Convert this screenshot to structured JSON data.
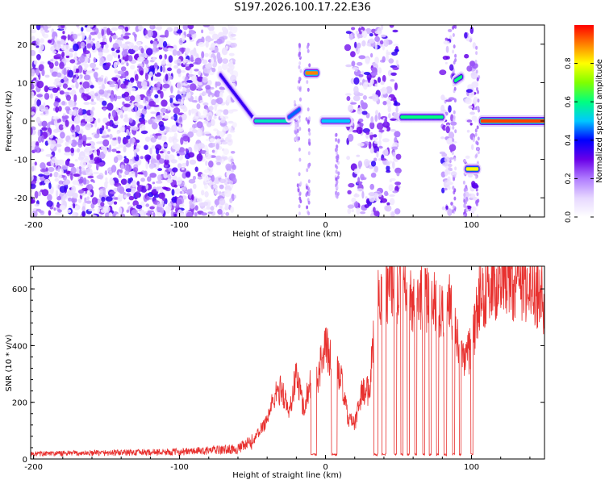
{
  "title": "S197.2026.100.17.22.E36",
  "chart_data": [
    {
      "type": "heatmap",
      "name": "spectrogram",
      "xlabel": "Height of straight line (km)",
      "ylabel": "Frequency (Hz)",
      "xlim": [
        -202,
        150
      ],
      "ylim": [
        -25,
        25
      ],
      "xticks": [
        -200,
        -100,
        0,
        100
      ],
      "yticks": [
        -20,
        -10,
        0,
        10,
        20
      ],
      "colorbar": {
        "label": "Normalized spectral amplitude",
        "range": [
          0,
          1
        ],
        "ticks": [
          0.0,
          0.2,
          0.4,
          0.6,
          0.8
        ],
        "tick_labels": [
          "0.0",
          "0.2",
          "0.4",
          "0.6",
          "0.8"
        ],
        "colormap": [
          "#ffffff",
          "#e6d7ff",
          "#b07cff",
          "#6a00e8",
          "#0000ff",
          "#00c8ff",
          "#00ff80",
          "#80ff00",
          "#ffff00",
          "#ff8000",
          "#ff0000"
        ]
      },
      "noise_regions_km": [
        [
          -202,
          -62
        ],
        [
          15,
          50
        ],
        [
          80,
          88
        ],
        [
          96,
          103
        ]
      ],
      "features": [
        {
          "x_start": -72,
          "x_end": -48,
          "freq_start": 12,
          "freq_end": 0,
          "amp": 0.35
        },
        {
          "x_start": -48,
          "x_end": -25,
          "freq_start": 0,
          "freq_end": 0,
          "amp": 0.55
        },
        {
          "x_start": -25,
          "x_end": -18,
          "freq_start": 1,
          "freq_end": 3,
          "amp": 0.45
        },
        {
          "x_start": -13,
          "x_end": -6,
          "freq_start": 12.5,
          "freq_end": 12.5,
          "amp": 0.9
        },
        {
          "x_start": -2,
          "x_end": 16,
          "freq_start": 0,
          "freq_end": 0,
          "amp": 0.5
        },
        {
          "x_start": 52,
          "x_end": 80,
          "freq_start": 1,
          "freq_end": 1,
          "amp": 0.6
        },
        {
          "x_start": 89,
          "x_end": 93,
          "freq_start": 10.5,
          "freq_end": 11.5,
          "amp": 0.6
        },
        {
          "x_start": 97,
          "x_end": 104,
          "freq_start": -12.5,
          "freq_end": -12.5,
          "amp": 0.8
        },
        {
          "x_start": 107,
          "x_end": 150,
          "freq_start": 0,
          "freq_end": 0,
          "amp": 0.95
        }
      ]
    },
    {
      "type": "line",
      "name": "snr",
      "xlabel": "Height of straight line (km)",
      "ylabel": "SNR (10 * v/v)",
      "xlim": [
        -202,
        150
      ],
      "ylim": [
        0,
        680
      ],
      "xticks": [
        -200,
        -100,
        0,
        100
      ],
      "yticks": [
        0,
        200,
        400,
        600
      ],
      "color": "#e8312f",
      "profile_km": [
        -202,
        -100,
        -60,
        -50,
        -40,
        -35,
        -30,
        -25,
        -20,
        -15,
        -10,
        -5,
        0,
        5,
        10,
        15,
        20,
        25,
        30,
        35,
        40,
        45,
        50,
        55,
        60,
        65,
        70,
        75,
        80,
        85,
        90,
        95,
        100,
        105,
        110,
        120,
        130,
        140,
        150
      ],
      "profile_snr": [
        18,
        25,
        35,
        60,
        140,
        220,
        250,
        160,
        300,
        180,
        280,
        300,
        400,
        330,
        300,
        150,
        120,
        240,
        240,
        590,
        600,
        620,
        600,
        600,
        570,
        580,
        550,
        560,
        520,
        540,
        440,
        330,
        400,
        560,
        600,
        630,
        620,
        610,
        560
      ],
      "dropouts_km": [
        [
          -10,
          -6
        ],
        [
          4,
          8
        ],
        [
          33,
          36
        ],
        [
          38.5,
          41.5
        ],
        [
          47,
          48.6
        ],
        [
          51.5,
          53
        ],
        [
          56,
          57.5
        ],
        [
          61,
          62.5
        ],
        [
          66.5,
          68
        ],
        [
          71,
          72.5
        ],
        [
          76,
          77.5
        ],
        [
          81,
          83
        ],
        [
          87,
          88.5
        ],
        [
          91.5,
          93
        ],
        [
          99.5,
          101
        ]
      ],
      "dropout_level": 12
    }
  ]
}
